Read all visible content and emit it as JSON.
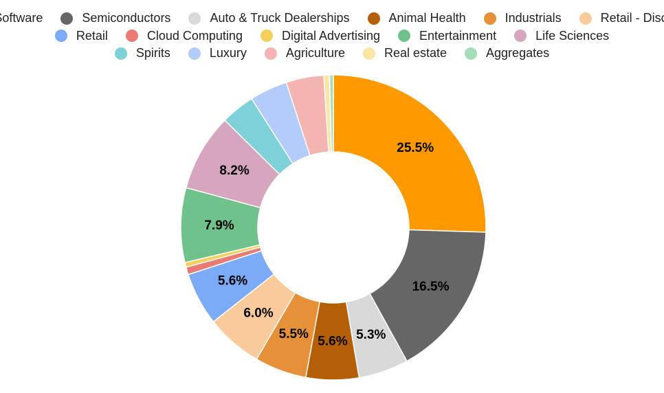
{
  "chart_data": {
    "type": "pie",
    "donut": true,
    "legend_position": "top",
    "slices": [
      {
        "label": "Software",
        "value": 25.5,
        "color": "#FF9900",
        "data_label": "25.5%"
      },
      {
        "label": "Semiconductors",
        "value": 16.5,
        "color": "#666666",
        "data_label": "16.5%"
      },
      {
        "label": "Auto & Truck Dealerships",
        "value": 5.3,
        "color": "#D9D9D9",
        "data_label": "5.3%"
      },
      {
        "label": "Animal Health",
        "value": 5.6,
        "color": "#B45F06",
        "data_label": "5.6%"
      },
      {
        "label": "Industrials",
        "value": 5.5,
        "color": "#E69138",
        "data_label": "5.5%"
      },
      {
        "label": "Retail - Discount",
        "value": 6.0,
        "color": "#F9CB9C",
        "data_label": "6.0%"
      },
      {
        "label": "Retail",
        "value": 5.6,
        "color": "#7BAAF7",
        "data_label": "5.6%"
      },
      {
        "label": "Cloud Computing",
        "value": 0.8,
        "color": "#EA7A74",
        "data_label": ""
      },
      {
        "label": "Digital Advertising",
        "value": 0.5,
        "color": "#F6CF5A",
        "data_label": ""
      },
      {
        "label": "Entertainment",
        "value": 7.9,
        "color": "#6FC28A",
        "data_label": "7.9%"
      },
      {
        "label": "Life Sciences",
        "value": 8.2,
        "color": "#D5A6BD",
        "data_label": "8.2%"
      },
      {
        "label": "Spirits",
        "value": 3.6,
        "color": "#7ED1D8",
        "data_label": ""
      },
      {
        "label": "Luxury",
        "value": 4.0,
        "color": "#B4CCFA",
        "data_label": ""
      },
      {
        "label": "Agriculture",
        "value": 4.0,
        "color": "#F4B5B2",
        "data_label": ""
      },
      {
        "label": "Real estate",
        "value": 0.6,
        "color": "#FCE6A6",
        "data_label": ""
      },
      {
        "label": "Aggregates",
        "value": 0.4,
        "color": "#A6DDB8",
        "data_label": ""
      }
    ]
  }
}
